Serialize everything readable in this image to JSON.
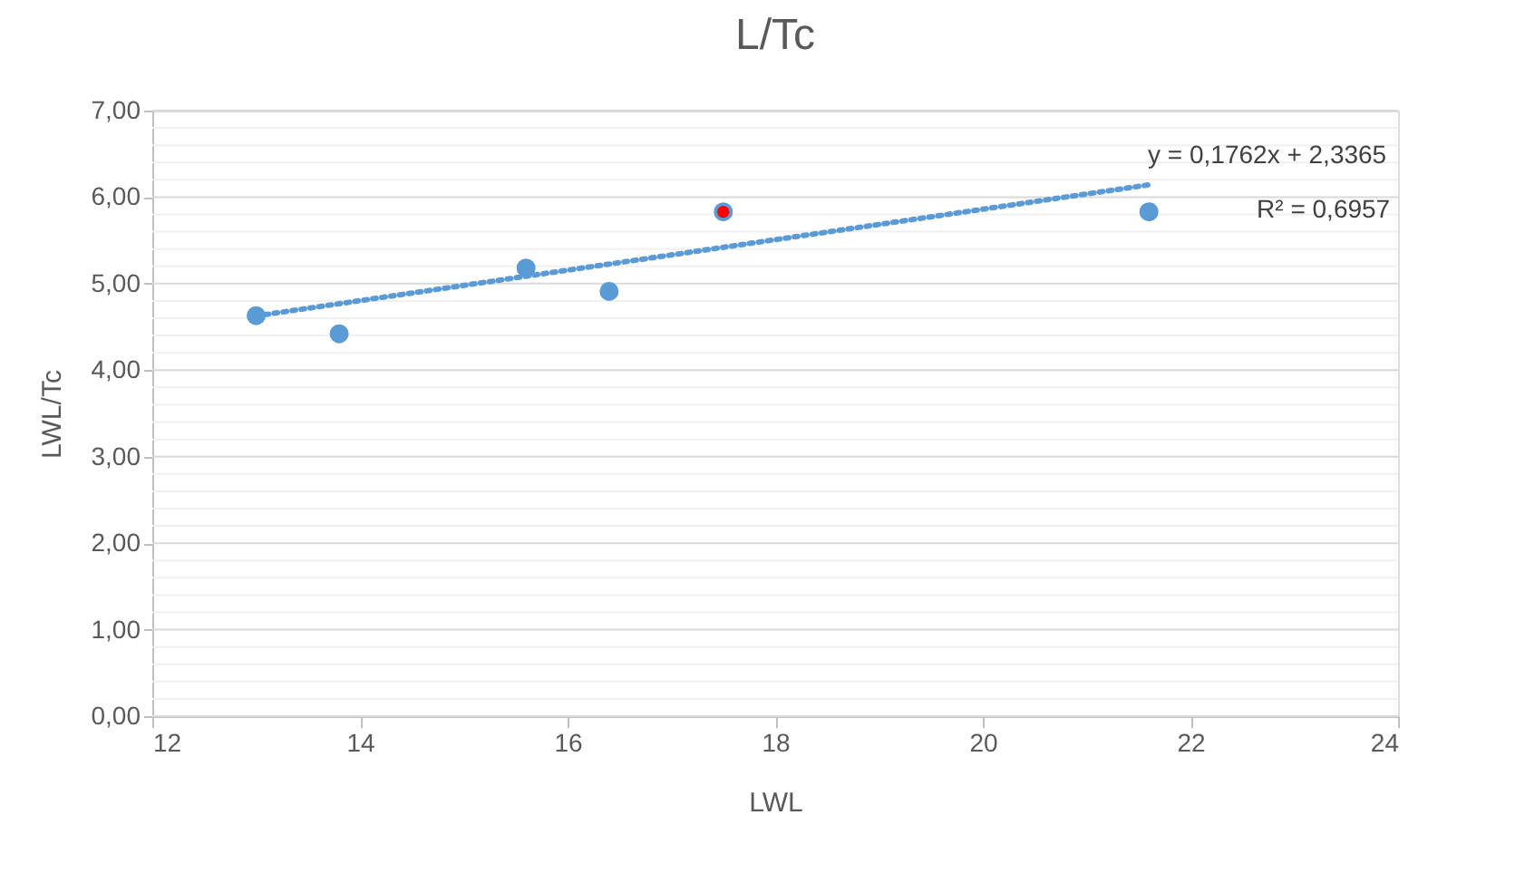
{
  "chart_data": {
    "type": "scatter",
    "title": "L/Tc",
    "xlabel": "LWL",
    "ylabel": "LWL/Tc",
    "marker": "circle",
    "grid": "y",
    "xlim": [
      12,
      24
    ],
    "xticks": [
      12,
      14,
      16,
      18,
      20,
      22,
      24
    ],
    "ylim": [
      0,
      7
    ],
    "yticks": [
      {
        "value": 0,
        "label": "0,00"
      },
      {
        "value": 0.2,
        "label": null
      },
      {
        "value": 0.4,
        "label": null
      },
      {
        "value": 0.6,
        "label": null
      },
      {
        "value": 0.8,
        "label": null
      },
      {
        "value": 1,
        "label": "1,00"
      },
      {
        "value": 1.2,
        "label": null
      },
      {
        "value": 1.4,
        "label": null
      },
      {
        "value": 1.6,
        "label": null
      },
      {
        "value": 1.8,
        "label": null
      },
      {
        "value": 2,
        "label": "2,00"
      },
      {
        "value": 2.2,
        "label": null
      },
      {
        "value": 2.4,
        "label": null
      },
      {
        "value": 2.6,
        "label": null
      },
      {
        "value": 2.8,
        "label": null
      },
      {
        "value": 3,
        "label": "3,00"
      },
      {
        "value": 3.2,
        "label": null
      },
      {
        "value": 3.4,
        "label": null
      },
      {
        "value": 3.6,
        "label": null
      },
      {
        "value": 3.8,
        "label": null
      },
      {
        "value": 4,
        "label": "4,00"
      },
      {
        "value": 4.2,
        "label": null
      },
      {
        "value": 4.4,
        "label": null
      },
      {
        "value": 4.6,
        "label": null
      },
      {
        "value": 4.8,
        "label": null
      },
      {
        "value": 5,
        "label": "5,00"
      },
      {
        "value": 5.2,
        "label": null
      },
      {
        "value": 5.4,
        "label": null
      },
      {
        "value": 5.6,
        "label": null
      },
      {
        "value": 5.8,
        "label": null
      },
      {
        "value": 6,
        "label": "6,00"
      },
      {
        "value": 6.2,
        "label": null
      },
      {
        "value": 6.4,
        "label": null
      },
      {
        "value": 6.6,
        "label": null
      },
      {
        "value": 6.8,
        "label": null
      },
      {
        "value": 7,
        "label": "7,00"
      }
    ],
    "series": [
      {
        "color": "#5b9bd5",
        "x": [
          13.0,
          13.8,
          15.6,
          16.4,
          17.5,
          21.6
        ],
        "values": [
          4.63,
          4.42,
          5.18,
          4.91,
          5.83,
          5.83
        ]
      },
      {
        "color": "#ff0000",
        "x": [
          17.5
        ],
        "values": [
          5.83
        ]
      },
      {
        "type": "line",
        "color": "#5b9bd5",
        "line_style": "dotted",
        "marker": "none",
        "x": [
          13.0,
          21.6
        ],
        "values": [
          4.627,
          6.142
        ]
      }
    ],
    "annotations": [
      "y = 0,1762x + 2,3365",
      "R² = 0,6957"
    ]
  }
}
